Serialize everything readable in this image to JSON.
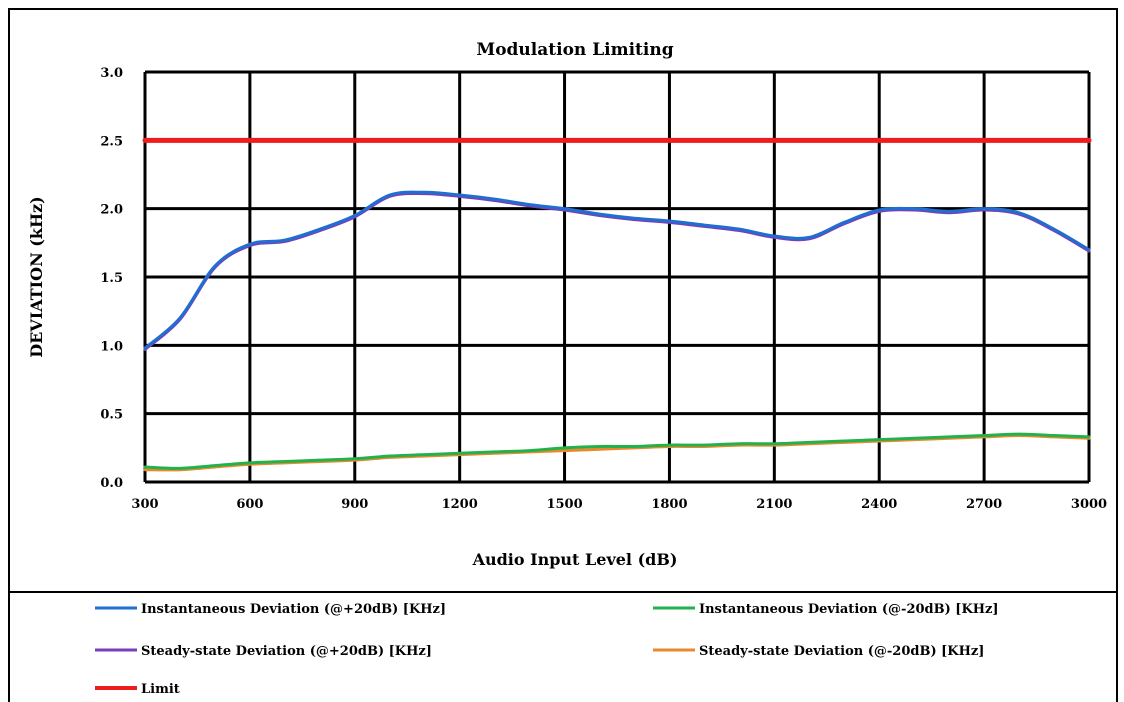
{
  "chart_data": {
    "type": "line",
    "title": "Modulation Limiting",
    "xlabel": "Audio Input Level (dB)",
    "ylabel": "DEVIATION (kHz)",
    "xlim": [
      300,
      3000
    ],
    "ylim": [
      0,
      3.0
    ],
    "x_ticks": [
      300,
      600,
      900,
      1200,
      1500,
      1800,
      2100,
      2400,
      2700,
      3000
    ],
    "x_tick_labels": [
      "300",
      "600",
      "900",
      "1200",
      "1500",
      "1800",
      "2100",
      "2400",
      "2700",
      "3000"
    ],
    "y_ticks": [
      0,
      0.5,
      1.0,
      1.5,
      2.0,
      2.5,
      3.0
    ],
    "y_tick_labels": [
      "0.0",
      "0.5",
      "1.0",
      "1.5",
      "2.0",
      "2.5",
      "3.0"
    ],
    "grid": true,
    "legend_position": "bottom",
    "x": [
      300,
      400,
      500,
      600,
      700,
      800,
      900,
      1000,
      1100,
      1200,
      1300,
      1400,
      1500,
      1600,
      1700,
      1800,
      1900,
      2000,
      2100,
      2200,
      2300,
      2400,
      2500,
      2600,
      2700,
      2800,
      2900,
      3000
    ],
    "series": [
      {
        "name": "Instantaneous Deviation (@+20dB) [KHz]",
        "color": "#1f6fd0",
        "values": [
          0.98,
          1.2,
          1.58,
          1.74,
          1.77,
          1.85,
          1.95,
          2.1,
          2.12,
          2.1,
          2.07,
          2.03,
          2.0,
          1.96,
          1.93,
          1.91,
          1.88,
          1.85,
          1.8,
          1.79,
          1.9,
          1.99,
          2.0,
          1.98,
          2.0,
          1.97,
          1.85,
          1.7
        ]
      },
      {
        "name": "Instantaneous Deviation (@-20dB) [KHz]",
        "color": "#21b24b",
        "values": [
          0.11,
          0.1,
          0.12,
          0.14,
          0.15,
          0.16,
          0.17,
          0.19,
          0.2,
          0.21,
          0.22,
          0.23,
          0.25,
          0.26,
          0.26,
          0.27,
          0.27,
          0.28,
          0.28,
          0.29,
          0.3,
          0.31,
          0.32,
          0.33,
          0.34,
          0.35,
          0.34,
          0.33
        ]
      },
      {
        "name": "Steady-state Deviation (@+20dB) [KHz]",
        "color": "#7a3fb8",
        "values": [
          0.97,
          1.19,
          1.57,
          1.73,
          1.76,
          1.84,
          1.94,
          2.09,
          2.11,
          2.09,
          2.06,
          2.02,
          1.99,
          1.95,
          1.92,
          1.9,
          1.87,
          1.84,
          1.79,
          1.78,
          1.89,
          1.98,
          1.99,
          1.97,
          1.99,
          1.96,
          1.84,
          1.69
        ]
      },
      {
        "name": "Steady-state Deviation (@-20dB) [KHz]",
        "color": "#e8892c",
        "values": [
          0.09,
          0.09,
          0.11,
          0.13,
          0.14,
          0.15,
          0.16,
          0.18,
          0.19,
          0.2,
          0.21,
          0.22,
          0.23,
          0.24,
          0.25,
          0.26,
          0.26,
          0.27,
          0.27,
          0.28,
          0.29,
          0.3,
          0.31,
          0.32,
          0.33,
          0.34,
          0.33,
          0.32
        ]
      },
      {
        "name": "Limit",
        "color": "#ee1c1c",
        "values": [
          2.5,
          2.5,
          2.5,
          2.5,
          2.5,
          2.5,
          2.5,
          2.5,
          2.5,
          2.5,
          2.5,
          2.5,
          2.5,
          2.5,
          2.5,
          2.5,
          2.5,
          2.5,
          2.5,
          2.5,
          2.5,
          2.5,
          2.5,
          2.5,
          2.5,
          2.5,
          2.5,
          2.5
        ]
      }
    ]
  }
}
